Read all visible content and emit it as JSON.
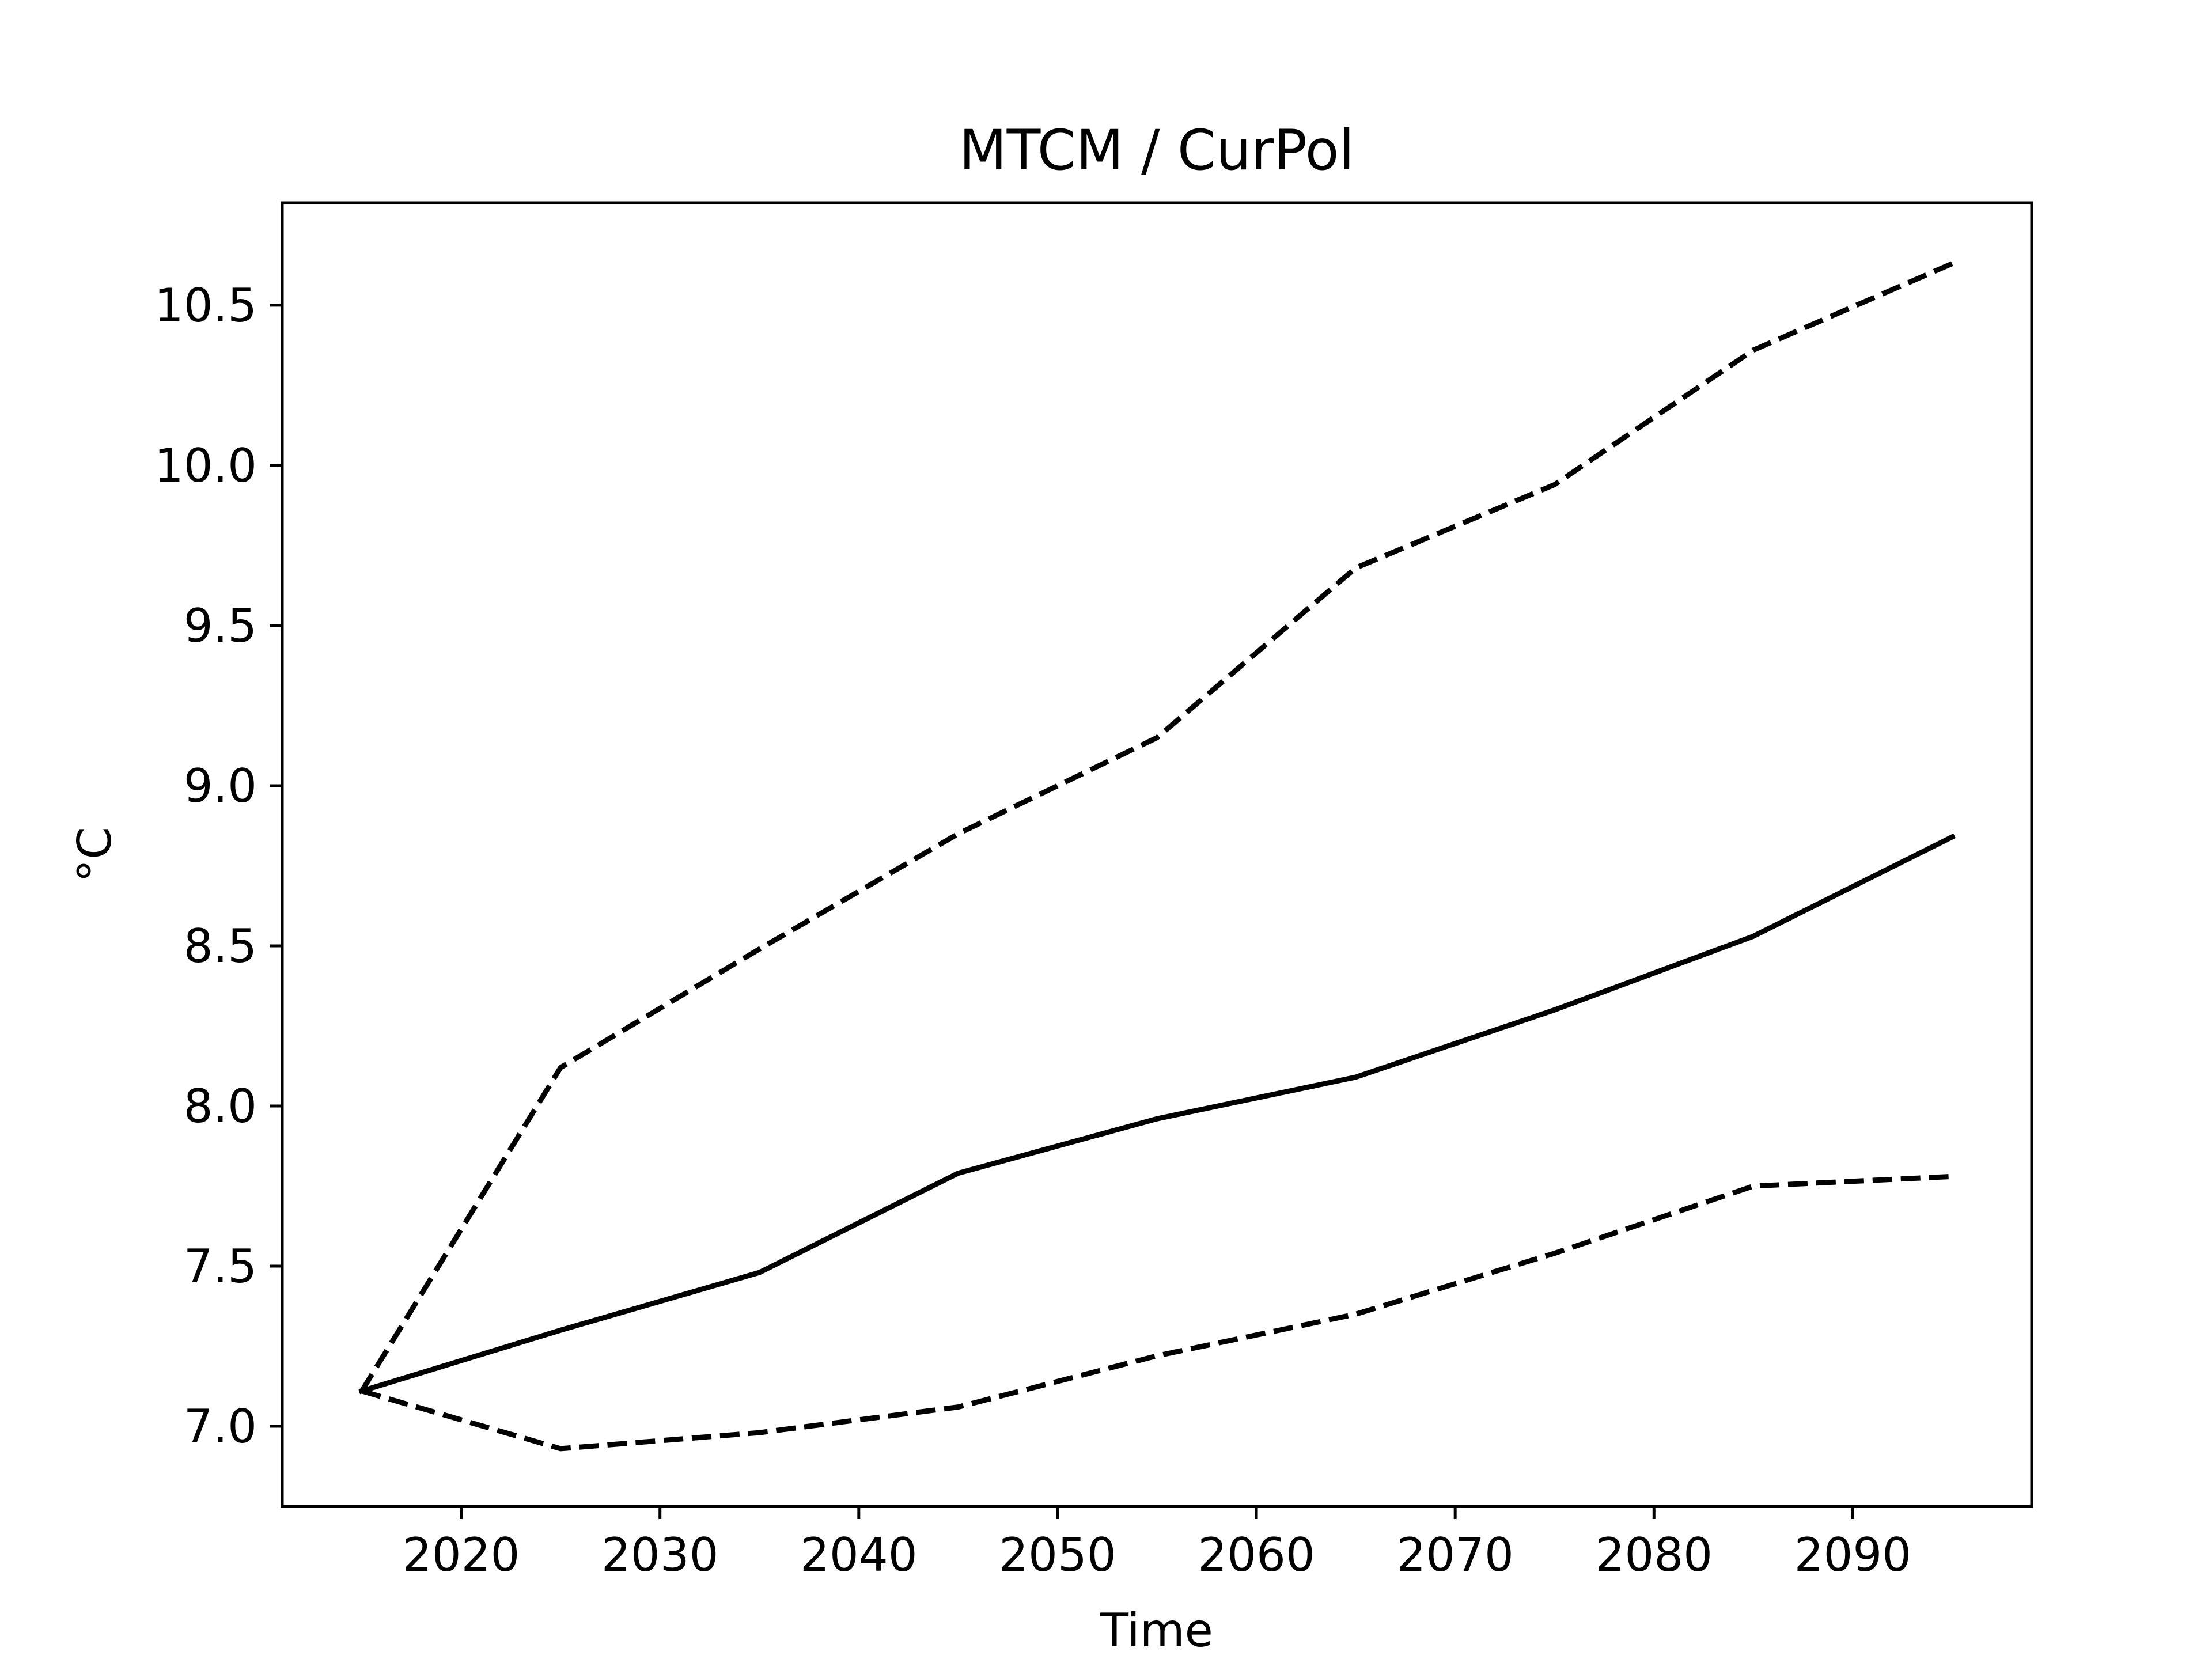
{
  "chart_data": {
    "type": "line",
    "title": "MTCM / CurPol",
    "xlabel": "Time",
    "ylabel": "°C",
    "xlim": [
      2011,
      2099
    ],
    "ylim": [
      6.75,
      10.82
    ],
    "xticks": [
      2020,
      2030,
      2040,
      2050,
      2060,
      2070,
      2080,
      2090
    ],
    "yticks": [
      7.0,
      7.5,
      8.0,
      8.5,
      9.0,
      9.5,
      10.0,
      10.5
    ],
    "ytick_labels": [
      "7.0",
      "7.5",
      "8.0",
      "8.5",
      "9.0",
      "9.5",
      "10.0",
      "10.5"
    ],
    "grid": false,
    "x": [
      2015,
      2025,
      2035,
      2045,
      2055,
      2065,
      2075,
      2085,
      2095
    ],
    "series": [
      {
        "style": "dashed",
        "color": "#000000",
        "values": [
          7.11,
          8.12,
          8.49,
          8.85,
          9.15,
          9.68,
          9.94,
          10.36,
          10.63
        ]
      },
      {
        "style": "solid",
        "color": "#000000",
        "values": [
          7.11,
          7.3,
          7.48,
          7.79,
          7.96,
          8.09,
          8.3,
          8.53,
          8.84
        ]
      },
      {
        "style": "dashed",
        "color": "#000000",
        "values": [
          7.11,
          6.93,
          6.98,
          7.06,
          7.22,
          7.35,
          7.54,
          7.75,
          7.78
        ]
      }
    ]
  }
}
